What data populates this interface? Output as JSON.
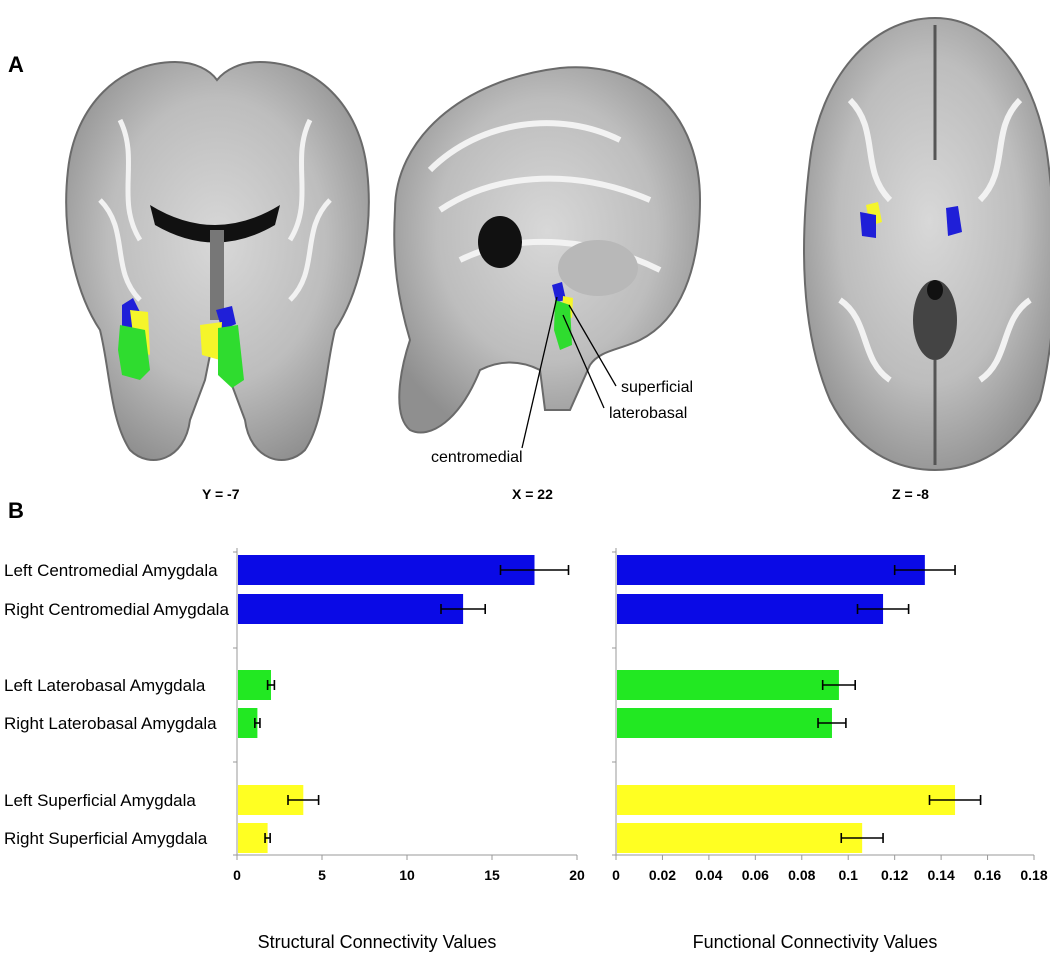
{
  "panels": {
    "a": "A",
    "b": "B"
  },
  "brain_views": {
    "coronal_label": "Y = -7",
    "sagittal_label": "X = 22",
    "axial_label": "Z = -8",
    "annotations": [
      "superficial",
      "laterobasal",
      "centromedial"
    ]
  },
  "colors": {
    "centromedial": "#0a0ae6",
    "laterobasal": "#22e822",
    "superficial": "#ffff22",
    "error_bar": "#000000"
  },
  "chart_data": [
    {
      "type": "bar",
      "orientation": "horizontal",
      "categories": [
        "Left Centromedial Amygdala",
        "Right Centromedial Amygdala",
        "Left Laterobasal Amygdala",
        "Right Laterobasal Amygdala",
        "Left Superficial Amygdala",
        "Right Superficial Amygdala"
      ],
      "values": [
        17.5,
        13.3,
        2.0,
        1.2,
        3.9,
        1.8
      ],
      "errors": [
        2.0,
        1.3,
        0.2,
        0.15,
        0.9,
        0.15
      ],
      "bar_colors": [
        "centromedial",
        "centromedial",
        "laterobasal",
        "laterobasal",
        "superficial",
        "superficial"
      ],
      "xlabel": "Structural Connectivity Values",
      "xlim": [
        0,
        20
      ],
      "xticks": [
        "0",
        "5",
        "10",
        "15",
        "20"
      ]
    },
    {
      "type": "bar",
      "orientation": "horizontal",
      "categories": [
        "Left Centromedial Amygdala",
        "Right Centromedial Amygdala",
        "Left Laterobasal Amygdala",
        "Right Laterobasal Amygdala",
        "Left Superficial Amygdala",
        "Right Superficial Amygdala"
      ],
      "values": [
        0.133,
        0.115,
        0.096,
        0.093,
        0.146,
        0.106
      ],
      "errors": [
        0.013,
        0.011,
        0.007,
        0.006,
        0.011,
        0.009
      ],
      "bar_colors": [
        "centromedial",
        "centromedial",
        "laterobasal",
        "laterobasal",
        "superficial",
        "superficial"
      ],
      "xlabel": "Functional Connectivity Values",
      "xlim": [
        0,
        0.18
      ],
      "xticks": [
        "0",
        "0.02",
        "0.04",
        "0.06",
        "0.08",
        "0.1",
        "0.12",
        "0.14",
        "0.16",
        "0.18"
      ]
    }
  ]
}
